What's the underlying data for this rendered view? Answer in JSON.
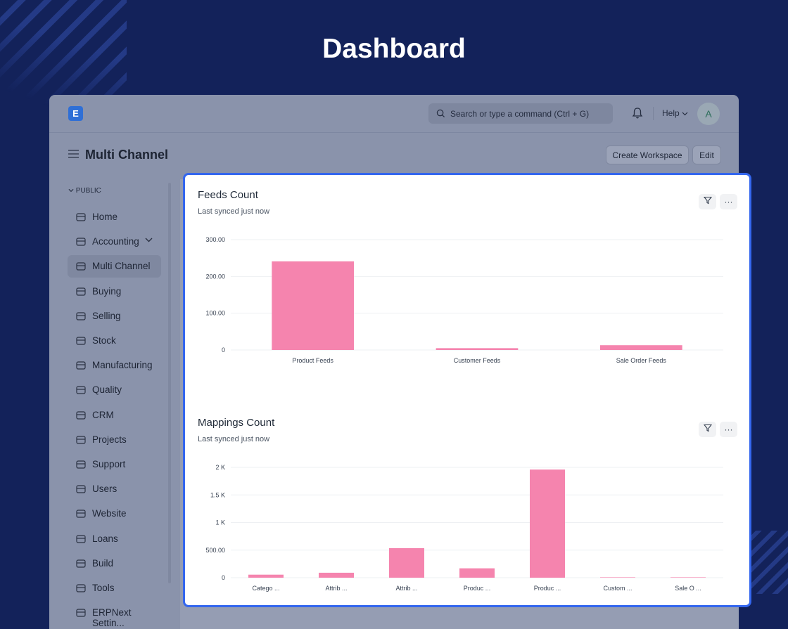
{
  "hero": {
    "title": "Dashboard"
  },
  "navbar": {
    "logo_letter": "E",
    "search_placeholder": "Search or type a command (Ctrl + G)",
    "help_label": "Help",
    "avatar_letter": "A"
  },
  "page": {
    "title": "Multi Channel",
    "create_workspace_label": "Create Workspace",
    "edit_label": "Edit"
  },
  "sidebar": {
    "section_label": "PUBLIC",
    "items": [
      {
        "label": "Home",
        "icon": "tools-icon"
      },
      {
        "label": "Accounting",
        "icon": "accounting-icon"
      },
      {
        "label": "Multi Channel",
        "icon": "multi-channel-icon"
      },
      {
        "label": "Buying",
        "icon": "buying-icon"
      },
      {
        "label": "Selling",
        "icon": "selling-icon"
      },
      {
        "label": "Stock",
        "icon": "stock-box-icon"
      },
      {
        "label": "Manufacturing",
        "icon": "factory-icon"
      },
      {
        "label": "Quality",
        "icon": "quality-icon"
      },
      {
        "label": "CRM",
        "icon": "crm-icon"
      },
      {
        "label": "Projects",
        "icon": "folder-icon"
      },
      {
        "label": "Support",
        "icon": "headset-icon"
      },
      {
        "label": "Users",
        "icon": "users-icon"
      },
      {
        "label": "Website",
        "icon": "website-icon"
      },
      {
        "label": "Loans",
        "icon": "loans-icon"
      },
      {
        "label": "Build",
        "icon": "build-icon"
      },
      {
        "label": "Tools",
        "icon": "tools-icon"
      },
      {
        "label": "ERPNext Settin...",
        "icon": "settings-icon"
      }
    ]
  },
  "colors": {
    "bar": "#f584ae",
    "accent": "#3366ee",
    "background": "#13225a"
  },
  "cards": [
    {
      "title": "Feeds Count",
      "subtitle": "Last synced just now"
    },
    {
      "title": "Mappings Count",
      "subtitle": "Last synced just now"
    }
  ],
  "chart_data": [
    {
      "type": "bar",
      "title": "Feeds Count",
      "categories": [
        "Product Feeds",
        "Customer Feeds",
        "Sale Order Feeds"
      ],
      "values": [
        241,
        5,
        13
      ],
      "yticks": [
        "0",
        "100.00",
        "200.00",
        "300.00"
      ],
      "ylim": [
        0,
        300
      ],
      "grid": true
    },
    {
      "type": "bar",
      "title": "Mappings Count",
      "categories": [
        "Catego ...",
        "Attrib ...",
        "Attrib ...",
        "Produc ...",
        "Produc ...",
        "Custom ...",
        "Sale O ..."
      ],
      "values": [
        55,
        90,
        535,
        170,
        1960,
        0,
        0
      ],
      "yticks": [
        "0",
        "500.00",
        "1 K",
        "1.5 K",
        "2 K"
      ],
      "ylim": [
        0,
        2000
      ],
      "grid": true
    }
  ]
}
